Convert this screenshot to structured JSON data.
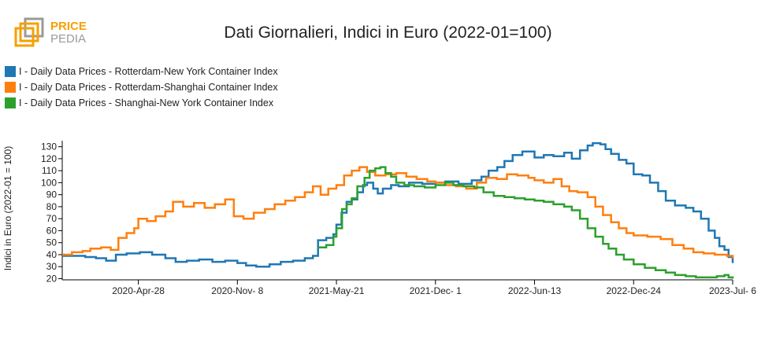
{
  "logo": {
    "text_top": "PRICE",
    "text_bottom": "PEDIA",
    "color_orange": "#f5a100",
    "color_gray": "#9a9a9a"
  },
  "chart_data": {
    "type": "line",
    "title": "Dati Giornalieri, Indici in Euro (2022-01=100)",
    "ylabel": "Indici in Euro (2022-01 = 100)",
    "xlabel": "",
    "ylim": [
      19,
      135
    ],
    "yticks": [
      20,
      30,
      40,
      50,
      60,
      70,
      80,
      90,
      100,
      110,
      120,
      130
    ],
    "xlim": [
      "2019-12-01",
      "2023-07-06"
    ],
    "xticks": [
      {
        "date": "2020-04-28",
        "label": "2020-Apr-28"
      },
      {
        "date": "2020-11-08",
        "label": "2020-Nov- 8"
      },
      {
        "date": "2021-05-21",
        "label": "2021-May-21"
      },
      {
        "date": "2021-12-01",
        "label": "2021-Dec- 1"
      },
      {
        "date": "2022-06-13",
        "label": "2022-Jun-13"
      },
      {
        "date": "2022-12-24",
        "label": "2022-Dec-24"
      },
      {
        "date": "2023-07-06",
        "label": "2023-Jul- 6"
      }
    ],
    "grid": false,
    "legend_position": "top-left",
    "series": [
      {
        "name": "I - Daily Data Prices - Rotterdam-New York Container Index",
        "color": "#1f77b4",
        "points": [
          [
            "2019-12-01",
            39
          ],
          [
            "2020-01-15",
            38
          ],
          [
            "2020-02-05",
            37
          ],
          [
            "2020-02-25",
            35
          ],
          [
            "2020-03-15",
            40
          ],
          [
            "2020-04-05",
            41
          ],
          [
            "2020-05-01",
            42
          ],
          [
            "2020-05-25",
            40
          ],
          [
            "2020-06-20",
            37
          ],
          [
            "2020-07-10",
            34
          ],
          [
            "2020-08-01",
            35
          ],
          [
            "2020-08-25",
            36
          ],
          [
            "2020-09-20",
            34
          ],
          [
            "2020-10-15",
            35
          ],
          [
            "2020-11-08",
            33
          ],
          [
            "2020-11-25",
            31
          ],
          [
            "2020-12-15",
            30
          ],
          [
            "2021-01-10",
            32
          ],
          [
            "2021-02-01",
            34
          ],
          [
            "2021-02-25",
            35
          ],
          [
            "2021-03-20",
            37
          ],
          [
            "2021-04-05",
            39
          ],
          [
            "2021-04-15",
            52
          ],
          [
            "2021-05-01",
            54
          ],
          [
            "2021-05-15",
            57
          ],
          [
            "2021-05-21",
            65
          ],
          [
            "2021-05-31",
            75
          ],
          [
            "2021-06-10",
            84
          ],
          [
            "2021-06-20",
            86
          ],
          [
            "2021-07-01",
            92
          ],
          [
            "2021-07-12",
            98
          ],
          [
            "2021-07-20",
            100
          ],
          [
            "2021-08-01",
            95
          ],
          [
            "2021-08-10",
            91
          ],
          [
            "2021-08-20",
            95
          ],
          [
            "2021-09-05",
            98
          ],
          [
            "2021-09-20",
            97
          ],
          [
            "2021-10-10",
            100
          ],
          [
            "2021-11-05",
            99
          ],
          [
            "2021-12-01",
            100
          ],
          [
            "2021-12-20",
            101
          ],
          [
            "2022-01-15",
            99
          ],
          [
            "2022-02-10",
            102
          ],
          [
            "2022-03-01",
            105
          ],
          [
            "2022-03-15",
            110
          ],
          [
            "2022-04-01",
            113
          ],
          [
            "2022-04-15",
            118
          ],
          [
            "2022-05-01",
            123
          ],
          [
            "2022-05-20",
            126
          ],
          [
            "2022-06-13",
            121
          ],
          [
            "2022-07-01",
            123
          ],
          [
            "2022-07-20",
            122
          ],
          [
            "2022-08-10",
            125
          ],
          [
            "2022-08-25",
            120
          ],
          [
            "2022-09-10",
            127
          ],
          [
            "2022-09-25",
            131
          ],
          [
            "2022-10-05",
            133
          ],
          [
            "2022-10-20",
            132
          ],
          [
            "2022-10-30",
            128
          ],
          [
            "2022-11-10",
            124
          ],
          [
            "2022-11-25",
            119
          ],
          [
            "2022-12-10",
            116
          ],
          [
            "2022-12-24",
            107
          ],
          [
            "2023-01-10",
            106
          ],
          [
            "2023-01-25",
            100
          ],
          [
            "2023-02-10",
            93
          ],
          [
            "2023-02-25",
            85
          ],
          [
            "2023-03-15",
            81
          ],
          [
            "2023-04-05",
            79
          ],
          [
            "2023-04-20",
            76
          ],
          [
            "2023-05-05",
            70
          ],
          [
            "2023-05-20",
            60
          ],
          [
            "2023-06-01",
            54
          ],
          [
            "2023-06-10",
            47
          ],
          [
            "2023-06-20",
            44
          ],
          [
            "2023-06-28",
            38
          ],
          [
            "2023-07-06",
            33
          ]
        ]
      },
      {
        "name": "I - Daily Data Prices - Rotterdam-Shanghai Container Index",
        "color": "#ff7f0e",
        "points": [
          [
            "2019-12-01",
            40
          ],
          [
            "2019-12-20",
            42
          ],
          [
            "2020-01-10",
            43
          ],
          [
            "2020-01-25",
            45
          ],
          [
            "2020-02-15",
            46
          ],
          [
            "2020-03-05",
            44
          ],
          [
            "2020-03-20",
            54
          ],
          [
            "2020-04-05",
            58
          ],
          [
            "2020-04-20",
            62
          ],
          [
            "2020-04-28",
            70
          ],
          [
            "2020-05-15",
            68
          ],
          [
            "2020-06-01",
            72
          ],
          [
            "2020-06-20",
            76
          ],
          [
            "2020-07-05",
            84
          ],
          [
            "2020-07-25",
            80
          ],
          [
            "2020-08-15",
            83
          ],
          [
            "2020-09-05",
            79
          ],
          [
            "2020-09-25",
            82
          ],
          [
            "2020-10-15",
            86
          ],
          [
            "2020-11-01",
            72
          ],
          [
            "2020-11-20",
            70
          ],
          [
            "2020-12-10",
            75
          ],
          [
            "2021-01-01",
            78
          ],
          [
            "2021-01-20",
            82
          ],
          [
            "2021-02-10",
            85
          ],
          [
            "2021-03-01",
            88
          ],
          [
            "2021-03-20",
            92
          ],
          [
            "2021-04-05",
            97
          ],
          [
            "2021-04-20",
            90
          ],
          [
            "2021-05-05",
            95
          ],
          [
            "2021-05-21",
            98
          ],
          [
            "2021-06-05",
            106
          ],
          [
            "2021-06-20",
            110
          ],
          [
            "2021-07-05",
            113
          ],
          [
            "2021-07-20",
            109
          ],
          [
            "2021-08-05",
            106
          ],
          [
            "2021-08-25",
            107
          ],
          [
            "2021-09-15",
            108
          ],
          [
            "2021-10-05",
            105
          ],
          [
            "2021-10-25",
            103
          ],
          [
            "2021-11-15",
            101
          ],
          [
            "2021-12-01",
            100
          ],
          [
            "2021-12-20",
            98
          ],
          [
            "2022-01-10",
            97
          ],
          [
            "2022-01-30",
            95
          ],
          [
            "2022-02-20",
            100
          ],
          [
            "2022-03-10",
            104
          ],
          [
            "2022-03-31",
            103
          ],
          [
            "2022-04-20",
            107
          ],
          [
            "2022-05-10",
            106
          ],
          [
            "2022-06-01",
            104
          ],
          [
            "2022-06-13",
            102
          ],
          [
            "2022-07-01",
            100
          ],
          [
            "2022-07-20",
            103
          ],
          [
            "2022-08-05",
            97
          ],
          [
            "2022-08-20",
            93
          ],
          [
            "2022-09-05",
            92
          ],
          [
            "2022-09-25",
            88
          ],
          [
            "2022-10-10",
            80
          ],
          [
            "2022-10-25",
            73
          ],
          [
            "2022-11-10",
            67
          ],
          [
            "2022-11-25",
            62
          ],
          [
            "2022-12-10",
            58
          ],
          [
            "2022-12-24",
            56
          ],
          [
            "2023-01-20",
            55
          ],
          [
            "2023-02-15",
            53
          ],
          [
            "2023-03-10",
            48
          ],
          [
            "2023-04-01",
            45
          ],
          [
            "2023-04-20",
            42
          ],
          [
            "2023-05-10",
            41
          ],
          [
            "2023-06-01",
            40
          ],
          [
            "2023-06-25",
            39
          ],
          [
            "2023-07-06",
            37
          ]
        ]
      },
      {
        "name": "I - Daily Data Prices - Shanghai-New York Container Index",
        "color": "#2ca02c",
        "points": [
          [
            "2021-04-15",
            46
          ],
          [
            "2021-05-01",
            48
          ],
          [
            "2021-05-15",
            55
          ],
          [
            "2021-05-21",
            62
          ],
          [
            "2021-06-01",
            78
          ],
          [
            "2021-06-10",
            82
          ],
          [
            "2021-06-20",
            87
          ],
          [
            "2021-07-01",
            97
          ],
          [
            "2021-07-15",
            104
          ],
          [
            "2021-07-25",
            110
          ],
          [
            "2021-08-05",
            112
          ],
          [
            "2021-08-15",
            113
          ],
          [
            "2021-08-25",
            108
          ],
          [
            "2021-09-05",
            105
          ],
          [
            "2021-09-15",
            100
          ],
          [
            "2021-10-01",
            98
          ],
          [
            "2021-10-20",
            97
          ],
          [
            "2021-11-10",
            96
          ],
          [
            "2021-12-01",
            98
          ],
          [
            "2021-12-20",
            100
          ],
          [
            "2022-01-05",
            98
          ],
          [
            "2022-01-25",
            97
          ],
          [
            "2022-02-15",
            96
          ],
          [
            "2022-03-05",
            92
          ],
          [
            "2022-03-25",
            89
          ],
          [
            "2022-04-15",
            88
          ],
          [
            "2022-05-05",
            87
          ],
          [
            "2022-05-25",
            86
          ],
          [
            "2022-06-13",
            85
          ],
          [
            "2022-07-01",
            84
          ],
          [
            "2022-07-20",
            82
          ],
          [
            "2022-08-10",
            80
          ],
          [
            "2022-08-25",
            77
          ],
          [
            "2022-09-10",
            70
          ],
          [
            "2022-09-25",
            62
          ],
          [
            "2022-10-10",
            55
          ],
          [
            "2022-10-25",
            49
          ],
          [
            "2022-11-05",
            45
          ],
          [
            "2022-11-20",
            40
          ],
          [
            "2022-12-05",
            36
          ],
          [
            "2022-12-24",
            32
          ],
          [
            "2023-01-15",
            29
          ],
          [
            "2023-02-05",
            27
          ],
          [
            "2023-02-25",
            25
          ],
          [
            "2023-03-15",
            23
          ],
          [
            "2023-04-05",
            22
          ],
          [
            "2023-04-25",
            21
          ],
          [
            "2023-05-15",
            21
          ],
          [
            "2023-06-05",
            22
          ],
          [
            "2023-06-20",
            23
          ],
          [
            "2023-06-28",
            21
          ],
          [
            "2023-07-06",
            20
          ]
        ]
      }
    ]
  }
}
